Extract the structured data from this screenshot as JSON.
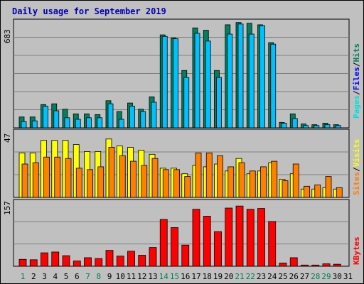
{
  "title": "Daily usage for September 2019",
  "colors": {
    "background": "#c0c0c0",
    "plot_bg": "#c0c0c0",
    "grid": "#808080",
    "hits": "#00805c",
    "files": "#00c0ff",
    "pages": "#00e0e0",
    "visits": "#ffff00",
    "sites": "#ff8000",
    "kbytes": "#ff0000",
    "title": "#0000b0",
    "weekend_label": "#00805c"
  },
  "legend_right": {
    "top": [
      "Pages",
      "/",
      "Files",
      "/",
      "Hits"
    ],
    "middle": [
      "Sites",
      "/",
      "Visits"
    ],
    "bottom": [
      "KBytes"
    ]
  },
  "chart_data": [
    {
      "type": "bar",
      "panel": "hits-files",
      "ymax_label": "683",
      "ylim": [
        0,
        683
      ],
      "categories": [
        "1",
        "2",
        "3",
        "4",
        "5",
        "6",
        "7",
        "8",
        "9",
        "10",
        "11",
        "12",
        "13",
        "14",
        "15",
        "16",
        "17",
        "18",
        "19",
        "20",
        "21",
        "22",
        "23",
        "24",
        "25",
        "26",
        "27",
        "28",
        "29",
        "30",
        "31"
      ],
      "series": [
        {
          "name": "Hits",
          "values": [
            70,
            70,
            150,
            155,
            120,
            90,
            90,
            85,
            175,
            105,
            160,
            120,
            200,
            600,
            580,
            370,
            645,
            630,
            370,
            665,
            680,
            675,
            665,
            550,
            35,
            90,
            25,
            20,
            30,
            20,
            0
          ]
        },
        {
          "name": "Files",
          "values": [
            40,
            45,
            140,
            110,
            65,
            55,
            65,
            65,
            155,
            55,
            140,
            105,
            165,
            590,
            575,
            325,
            610,
            560,
            325,
            605,
            670,
            605,
            660,
            540,
            30,
            60,
            15,
            15,
            20,
            15,
            0
          ]
        }
      ]
    },
    {
      "type": "bar",
      "panel": "visits-sites",
      "ymax_label": "47",
      "ylim": [
        0,
        47
      ],
      "categories": [
        "1",
        "2",
        "3",
        "4",
        "5",
        "6",
        "7",
        "8",
        "9",
        "10",
        "11",
        "12",
        "13",
        "14",
        "15",
        "16",
        "17",
        "18",
        "19",
        "20",
        "21",
        "22",
        "23",
        "24",
        "25",
        "26",
        "27",
        "28",
        "29",
        "30",
        "31"
      ],
      "series": [
        {
          "name": "Visits",
          "values": [
            32,
            32,
            41,
            41,
            41,
            38,
            33,
            33,
            42,
            37,
            36,
            34,
            31,
            21,
            21,
            17,
            23,
            22,
            24,
            19,
            28,
            17,
            19,
            25,
            13,
            17,
            6,
            6,
            7,
            6,
            0
          ]
        },
        {
          "name": "Sites",
          "values": [
            24,
            25,
            29,
            29,
            28,
            21,
            20,
            22,
            36,
            30,
            26,
            23,
            28,
            20,
            20,
            15,
            32,
            32,
            30,
            22,
            25,
            19,
            22,
            26,
            12,
            24,
            8,
            9,
            15,
            7,
            0
          ]
        }
      ]
    },
    {
      "type": "bar",
      "panel": "kbytes",
      "ymax_label": "157",
      "ylim": [
        0,
        157
      ],
      "categories": [
        "1",
        "2",
        "3",
        "4",
        "5",
        "6",
        "7",
        "8",
        "9",
        "10",
        "11",
        "12",
        "13",
        "14",
        "15",
        "16",
        "17",
        "18",
        "19",
        "20",
        "21",
        "22",
        "23",
        "24",
        "25",
        "26",
        "27",
        "28",
        "29",
        "30",
        "31"
      ],
      "series": [
        {
          "name": "KBytes",
          "values": [
            17,
            16,
            33,
            35,
            26,
            13,
            21,
            19,
            39,
            25,
            37,
            27,
            46,
            115,
            95,
            52,
            140,
            123,
            85,
            143,
            148,
            140,
            142,
            110,
            8,
            21,
            3,
            3,
            6,
            5,
            0
          ]
        }
      ]
    }
  ],
  "weekend_days": [
    "1",
    "7",
    "8",
    "14",
    "15",
    "21",
    "22",
    "28",
    "29"
  ]
}
